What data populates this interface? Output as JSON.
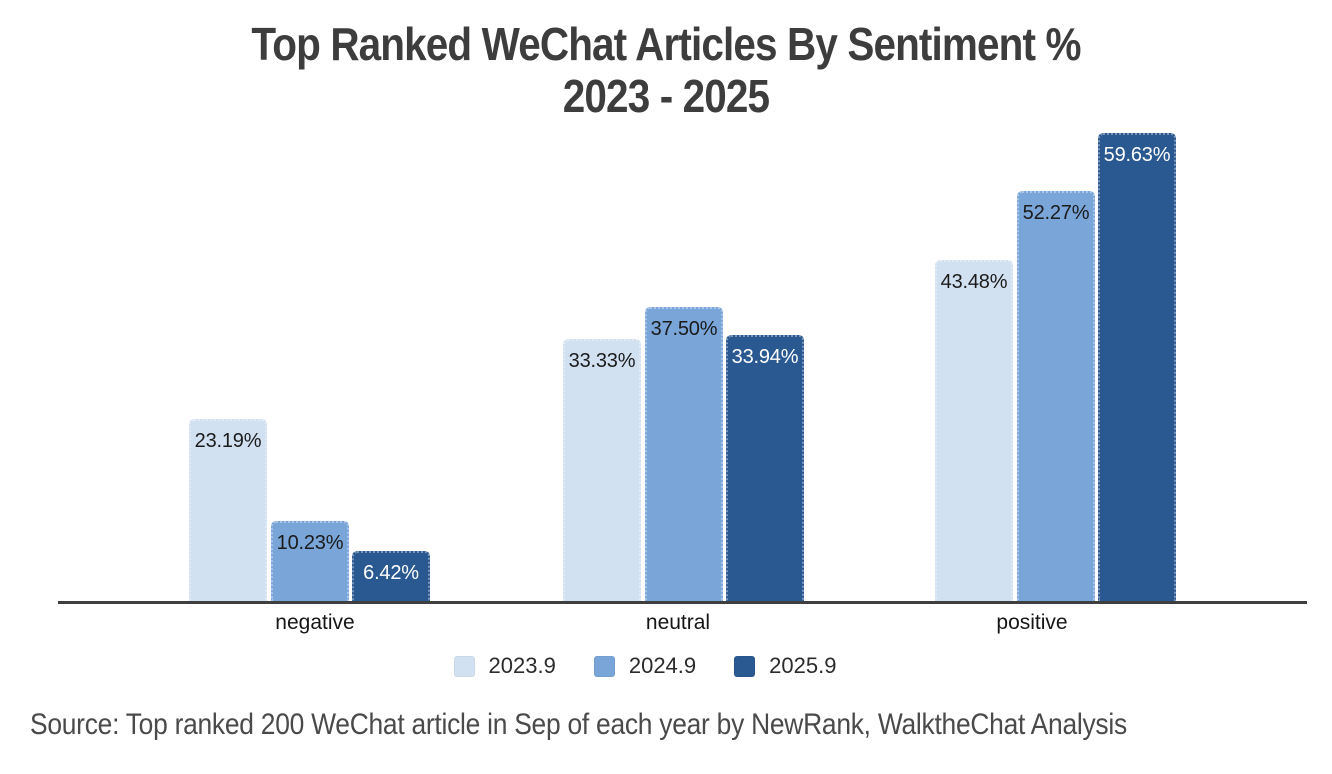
{
  "title": {
    "line1": "Top Ranked WeChat Articles By Sentiment %",
    "line2": "2023 - 2025"
  },
  "source": "Source: Top ranked 200 WeChat article in Sep of each year by NewRank, WalktheChat Analysis",
  "colors": {
    "series_2023": "#d2e1f1",
    "series_2024": "#79a5d9",
    "series_2025": "#2a5890",
    "axis_line": "#3f3f3f",
    "title_text": "#3d3d3d",
    "source_text": "#4a4a4a"
  },
  "chart_data": {
    "type": "bar",
    "title": "Top Ranked WeChat Articles By Sentiment % 2023 - 2025",
    "categories": [
      "negative",
      "neutral",
      "positive"
    ],
    "series": [
      {
        "name": "2023.9",
        "color": "#d2e1f1",
        "label_color": "#1b1b1b",
        "values": [
          23.19,
          33.33,
          43.48
        ]
      },
      {
        "name": "2024.9",
        "color": "#79a5d9",
        "label_color": "#1b1b1b",
        "values": [
          10.23,
          37.5,
          52.27
        ]
      },
      {
        "name": "2025.9",
        "color": "#2a5890",
        "label_color": "#ffffff",
        "values": [
          6.42,
          33.94,
          59.63
        ]
      }
    ],
    "value_label_format": "0.00%",
    "xlabel": "",
    "ylabel": "",
    "ylim": [
      0,
      63
    ],
    "grid": false,
    "legend_position": "bottom",
    "value_labels_inside_bar_top": true
  }
}
